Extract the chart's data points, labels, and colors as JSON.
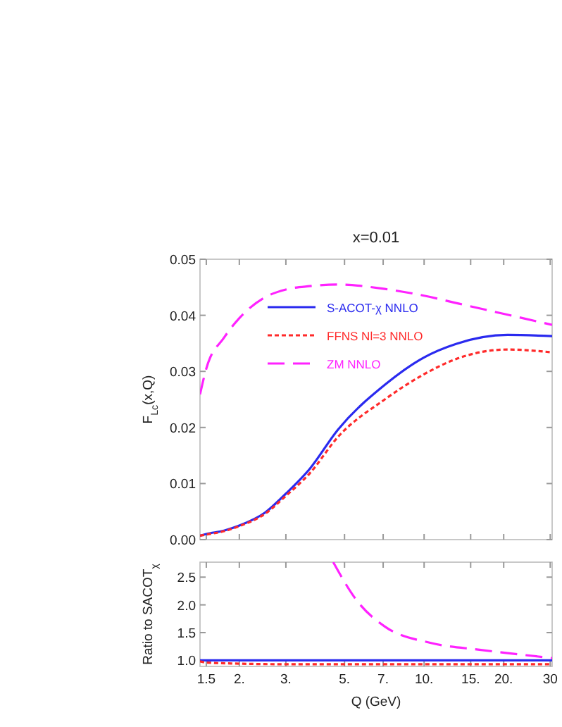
{
  "chart_data": [
    {
      "type": "line",
      "title": "x=0.01",
      "ylabel": "F$_{Lc}$(x,Q)",
      "log": "x",
      "xlim": [
        1.42,
        30.5
      ],
      "xticks": [
        1.5,
        2,
        3,
        5,
        7,
        10,
        15,
        20,
        30
      ],
      "ylim": [
        0,
        0.05
      ],
      "yticks": [
        {
          "value": 0,
          "label": "0.00"
        },
        {
          "value": 0.01,
          "label": "0.01"
        },
        {
          "value": 0.02,
          "label": "0.02"
        },
        {
          "value": 0.03,
          "label": "0.03"
        },
        {
          "value": 0.04,
          "label": "0.04"
        },
        {
          "value": 0.05,
          "label": "0.05"
        }
      ],
      "tick_labels": "y",
      "legend": "top left",
      "x": [
        1.42,
        1.5,
        1.75,
        2.0,
        2.5,
        3.0,
        3.69,
        4.72,
        7.1,
        10,
        13.2,
        20.7,
        30.5
      ],
      "series": [
        {
          "name": "S-ACOT-χ NNLO",
          "color": "#2a2aef",
          "line_style": "solid",
          "values": [
            0.0007,
            0.001,
            0.0016,
            0.0025,
            0.0048,
            0.0082,
            0.0126,
            0.0196,
            0.0276,
            0.0325,
            0.0349,
            0.0365,
            0.0363
          ]
        },
        {
          "name": "FFNS Nl=3 NNLO",
          "color": "#ff2a2a",
          "line_style": "dotted",
          "values": [
            0.0007,
            0.0009,
            0.0015,
            0.0024,
            0.0046,
            0.0078,
            0.0118,
            0.0183,
            0.025,
            0.0295,
            0.0322,
            0.0339,
            0.0334
          ]
        },
        {
          "name": "ZM NNLO",
          "color": "#ff22ff",
          "line_style": "dashed",
          "values": [
            0.0259,
            0.0305,
            0.036,
            0.0395,
            0.0432,
            0.0446,
            0.0452,
            0.0455,
            0.0447,
            0.0435,
            0.0422,
            0.0401,
            0.0383
          ]
        }
      ]
    },
    {
      "type": "line",
      "xlabel": "Q (GeV)",
      "ylabel": "Ratio to SACOT$_{χ}$",
      "log": "x",
      "xlim": [
        1.42,
        30.5
      ],
      "xticks": [
        1.5,
        {
          "value": 2,
          "label": "2."
        },
        {
          "value": 3,
          "label": "3."
        },
        {
          "value": 5,
          "label": "5."
        },
        {
          "value": 7,
          "label": "7."
        },
        {
          "value": 10,
          "label": "10."
        },
        {
          "value": 15,
          "label": "15."
        },
        {
          "value": 20,
          "label": "20."
        },
        30
      ],
      "ylim": [
        0.89,
        2.77
      ],
      "yticks": [
        {
          "value": 1,
          "label": "1.0"
        },
        {
          "value": 1.5,
          "label": "1.5"
        },
        {
          "value": 2,
          "label": "2.0"
        },
        {
          "value": 2.5,
          "label": "2.5"
        }
      ],
      "series": [
        {
          "color": "#2a2aef",
          "line_style": "solid",
          "x": [
            1.42,
            30.5
          ],
          "values": [
            1,
            1
          ]
        },
        {
          "color": "#ff2a2a",
          "line_style": "dotted",
          "x": [
            1.42,
            1.5,
            2,
            3,
            30.5
          ],
          "values": [
            0.98,
            0.96,
            0.94,
            0.93,
            0.93
          ]
        },
        {
          "color": "#ff22ff",
          "line_style": "dashed",
          "x": [
            4.53,
            5.56,
            7.1,
            10.7,
            16.2,
            20.7,
            30.5
          ],
          "values": [
            2.77,
            2.08,
            1.61,
            1.31,
            1.19,
            1.13,
            1.04
          ]
        }
      ]
    }
  ]
}
